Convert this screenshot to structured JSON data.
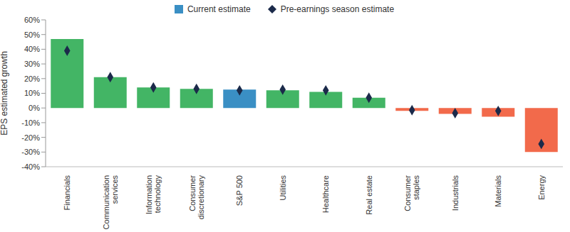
{
  "chart_data": {
    "type": "bar",
    "categories": [
      "Financials",
      "Communication services",
      "Information technology",
      "Consumer discretionary",
      "S&P 500",
      "Utilities",
      "Healthcare",
      "Real estate",
      "Consumer staples",
      "Industrials",
      "Materials",
      "Energy"
    ],
    "series": [
      {
        "name": "Current estimate",
        "type": "bar",
        "color": "#3a8fc4",
        "colors": [
          "#43b565",
          "#43b565",
          "#43b565",
          "#43b565",
          "#3a8fc4",
          "#43b565",
          "#43b565",
          "#43b565",
          "#f26a4b",
          "#f26a4b",
          "#f26a4b",
          "#f26a4b"
        ],
        "values": [
          47,
          21,
          14,
          13,
          12.5,
          12,
          11,
          7,
          -2,
          -4,
          -6,
          -30
        ]
      },
      {
        "name": "Pre-earnings season estimate",
        "type": "scatter",
        "marker": "diamond",
        "color": "#1b2a4a",
        "values": [
          39,
          21,
          14,
          13,
          12,
          12.5,
          12,
          7,
          -1.5,
          -3.5,
          -2,
          -24.5
        ]
      }
    ],
    "y_label": "EPS estimated growth",
    "ylim": [
      -40,
      60
    ],
    "yticks": [
      {
        "value": -40,
        "label": "-40%"
      },
      {
        "value": -30,
        "label": "-30%"
      },
      {
        "value": -20,
        "label": "-20%"
      },
      {
        "value": -10,
        "label": "-10%"
      },
      {
        "value": 0,
        "label": "0%"
      },
      {
        "value": 10,
        "label": "10%"
      },
      {
        "value": 20,
        "label": "20%"
      },
      {
        "value": 30,
        "label": "30%"
      },
      {
        "value": 40,
        "label": "40%"
      },
      {
        "value": 50,
        "label": "50%"
      },
      {
        "value": 60,
        "label": "60%"
      }
    ],
    "grid": false,
    "legend": "top"
  }
}
